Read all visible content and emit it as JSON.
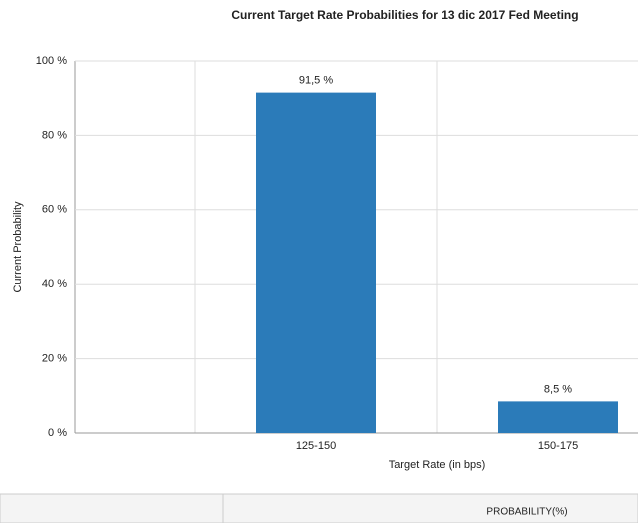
{
  "chart_data": {
    "type": "bar",
    "title": "Current Target Rate Probabilities for 13 dic 2017 Fed Meeting",
    "x_label": "Target Rate (in bps)",
    "y_label": "Current Probability",
    "categories": [
      "125-150",
      "150-175"
    ],
    "values": [
      91.5,
      8.5
    ],
    "value_labels": [
      "91,5 %",
      "8,5 %"
    ],
    "color": "#2b7bb9",
    "ylim": [
      0,
      100
    ],
    "yticks": [
      {
        "value": 0,
        "label": "0 %"
      },
      {
        "value": 20,
        "label": "20 %"
      },
      {
        "value": 40,
        "label": "40 %"
      },
      {
        "value": 60,
        "label": "60 %"
      },
      {
        "value": 80,
        "label": "80 %"
      },
      {
        "value": 100,
        "label": "100 %"
      }
    ],
    "grid": true
  },
  "table": {
    "header": "PROBABILITY(%)"
  }
}
